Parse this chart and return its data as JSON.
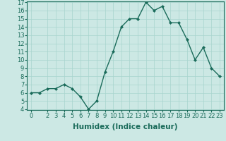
{
  "x": [
    0,
    1,
    2,
    3,
    4,
    5,
    6,
    7,
    8,
    9,
    10,
    11,
    12,
    13,
    14,
    15,
    16,
    17,
    18,
    19,
    20,
    21,
    22,
    23
  ],
  "y": [
    6.0,
    6.0,
    6.5,
    6.5,
    7.0,
    6.5,
    5.5,
    4.0,
    5.0,
    8.5,
    11.0,
    14.0,
    15.0,
    15.0,
    17.0,
    16.0,
    16.5,
    14.5,
    14.5,
    12.5,
    10.0,
    11.5,
    9.0,
    8.0
  ],
  "line_color": "#1a6b5a",
  "marker": "D",
  "marker_size": 2.0,
  "bg_color": "#cce8e4",
  "grid_color": "#a8d4ce",
  "xlabel": "Humidex (Indice chaleur)",
  "ylim": [
    4,
    17
  ],
  "xlim": [
    -0.5,
    23.5
  ],
  "yticks": [
    4,
    5,
    6,
    7,
    8,
    9,
    10,
    11,
    12,
    13,
    14,
    15,
    16,
    17
  ],
  "xticks": [
    0,
    2,
    3,
    4,
    5,
    6,
    7,
    8,
    9,
    10,
    11,
    12,
    13,
    14,
    15,
    16,
    17,
    18,
    19,
    20,
    21,
    22,
    23
  ],
  "xlabel_fontsize": 7.5,
  "tick_fontsize": 6.0,
  "axis_color": "#1a6b5a",
  "linewidth": 1.0
}
